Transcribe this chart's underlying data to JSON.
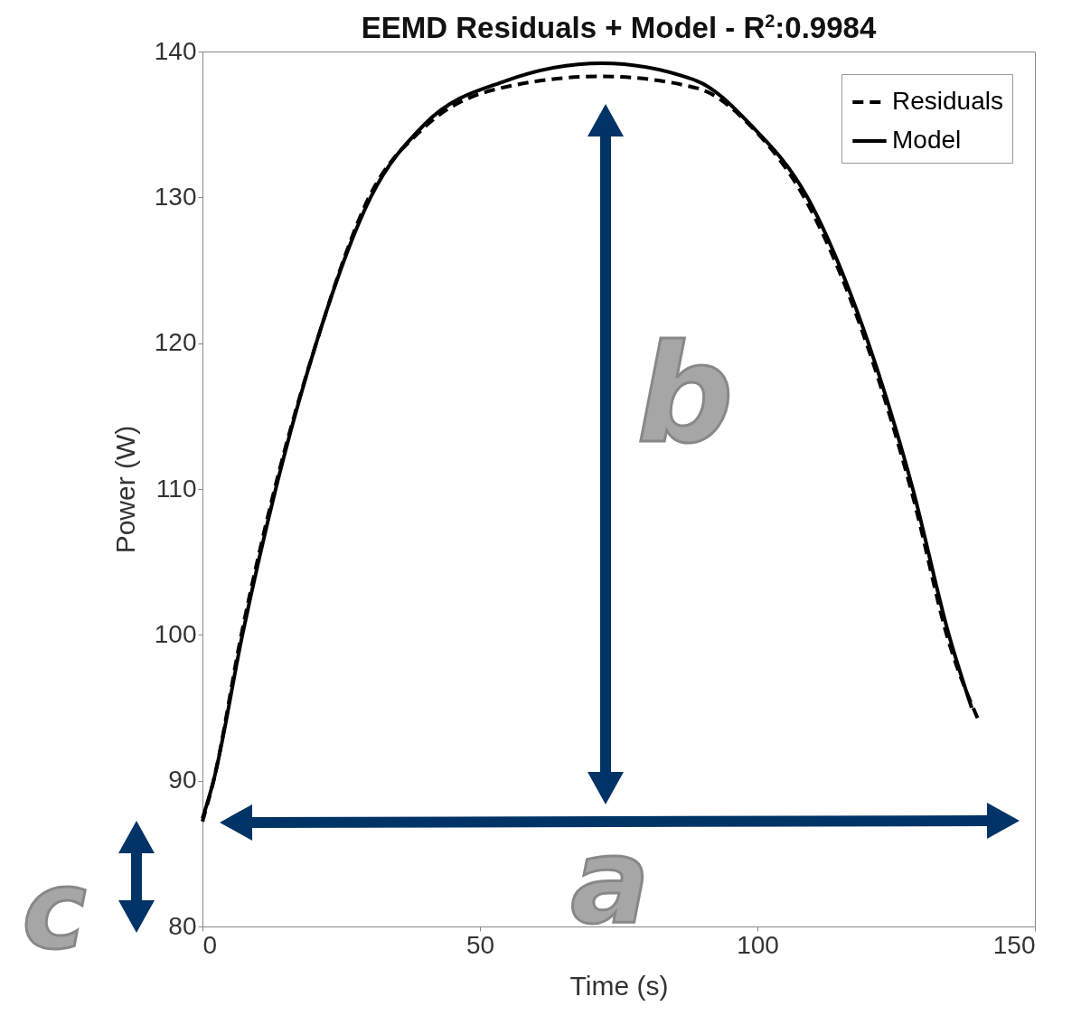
{
  "chart_data": {
    "type": "line",
    "title": "EEMD Residuals + Model - R$^{2}$:0.9984",
    "xlabel": "Time (s)",
    "ylabel": "Power (W)",
    "xlim": [
      0,
      150
    ],
    "ylim": [
      80,
      140
    ],
    "xticks": [
      0,
      50,
      100,
      150
    ],
    "yticks": [
      80,
      90,
      100,
      110,
      120,
      130,
      140
    ],
    "grid": false,
    "legend": "top right",
    "marker": "none",
    "series": [
      {
        "name": "Residuals",
        "color": "#000000",
        "line_style": "dashed",
        "x": [
          0,
          2,
          7,
          13,
          20.5,
          30,
          40,
          55,
          72,
          89,
          99,
          109,
          120,
          128,
          134.5,
          140
        ],
        "values": [
          87.2,
          90,
          100,
          110,
          120,
          130,
          134.8,
          137.6,
          138.3,
          137.5,
          134.8,
          129.6,
          119.6,
          109.5,
          99.5,
          94
        ]
      },
      {
        "name": "Model",
        "color": "#000000",
        "line_style": "solid",
        "x": [
          0,
          2,
          7.2,
          13.2,
          20.5,
          30.3,
          40,
          54.7,
          72,
          89,
          98.7,
          109,
          120,
          128,
          134.5,
          138.6
        ],
        "values": [
          87.4,
          90,
          100,
          110,
          120,
          130,
          135,
          138,
          139.2,
          138,
          135,
          130,
          120,
          110,
          100,
          95
        ]
      }
    ],
    "annotations": [
      "a",
      "b",
      "c"
    ]
  }
}
